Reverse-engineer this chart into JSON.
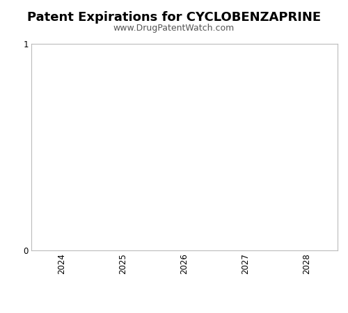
{
  "title": "Patent Expirations for CYCLOBENZAPRINE",
  "subtitle": "www.DrugPatentWatch.com",
  "xlim": [
    2023.5,
    2028.5
  ],
  "ylim": [
    0,
    1
  ],
  "xticks": [
    2024,
    2025,
    2026,
    2027,
    2028
  ],
  "yticks": [
    0,
    1
  ],
  "title_fontsize": 13,
  "subtitle_fontsize": 9,
  "tick_fontsize": 8.5,
  "background_color": "#ffffff",
  "plot_bg_color": "#ffffff",
  "spine_color": "#bbbbbb",
  "subtitle_color": "#555555"
}
